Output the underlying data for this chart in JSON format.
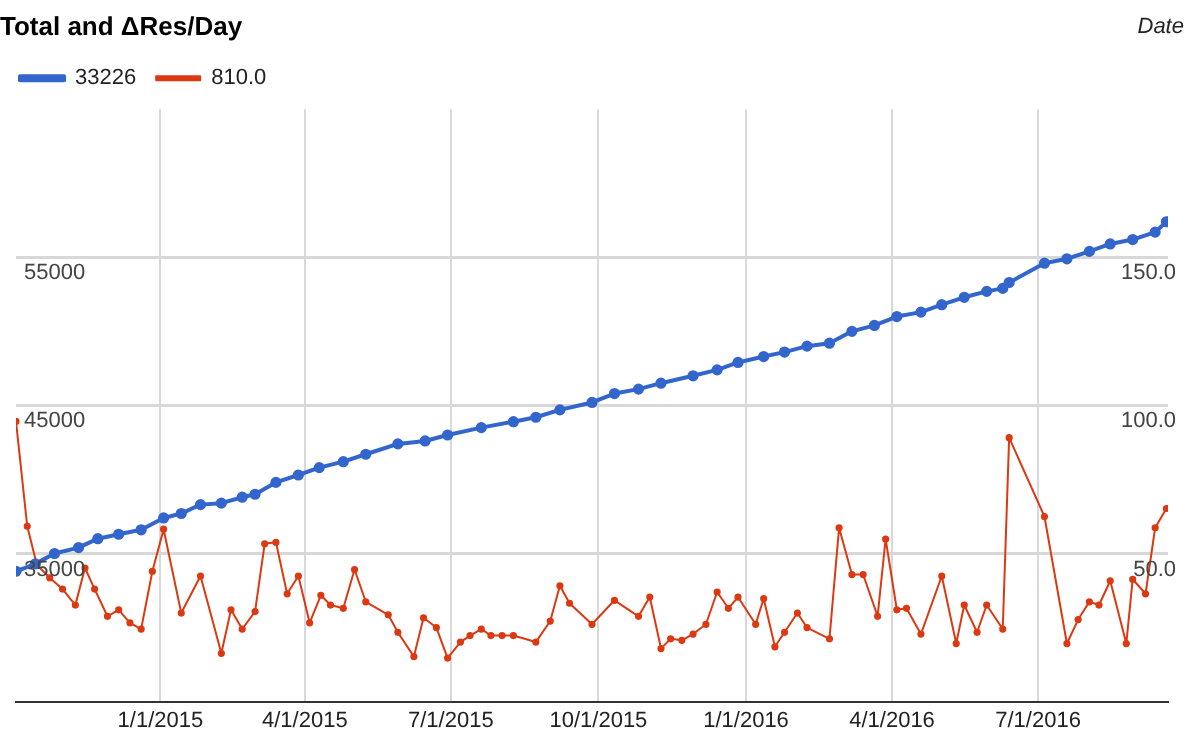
{
  "chart_data": {
    "type": "line",
    "title": "Total and ΔRes/Day",
    "xlabel": "Date",
    "xlim": [
      "2014-10-03",
      "2016-09-20"
    ],
    "xticks": [
      {
        "value": "2015-01-01",
        "label": "1/1/2015"
      },
      {
        "value": "2015-04-01",
        "label": "4/1/2015"
      },
      {
        "value": "2015-07-01",
        "label": "7/1/2015"
      },
      {
        "value": "2015-10-01",
        "label": "10/1/2015"
      },
      {
        "value": "2016-01-01",
        "label": "1/1/2016"
      },
      {
        "value": "2016-04-01",
        "label": "4/1/2016"
      },
      {
        "value": "2016-07-01",
        "label": "7/1/2016"
      }
    ],
    "ylim": [
      25000,
      65000
    ],
    "yticks": [
      35000,
      45000,
      55000
    ],
    "y2lim": [
      0,
      200
    ],
    "y2ticks": [
      {
        "value": 50,
        "label": "50.0"
      },
      {
        "value": 100,
        "label": "100.0"
      },
      {
        "value": 150,
        "label": "150.0"
      }
    ],
    "grid": true,
    "legend": "top left",
    "marker": "circle",
    "line_style": "solid",
    "series": [
      {
        "name": "33226",
        "color": "#3366cc",
        "axis": "y",
        "x": [
          "2014-10-03",
          "2014-10-15",
          "2014-10-27",
          "2014-11-11",
          "2014-11-23",
          "2014-12-06",
          "2014-12-20",
          "2015-01-03",
          "2015-01-14",
          "2015-01-26",
          "2015-02-08",
          "2015-02-21",
          "2015-03-01",
          "2015-03-14",
          "2015-03-28",
          "2015-04-10",
          "2015-04-25",
          "2015-05-09",
          "2015-05-29",
          "2015-06-15",
          "2015-06-29",
          "2015-07-20",
          "2015-08-09",
          "2015-08-23",
          "2015-09-07",
          "2015-09-27",
          "2015-10-11",
          "2015-10-26",
          "2015-11-09",
          "2015-11-29",
          "2015-12-14",
          "2015-12-27",
          "2016-01-12",
          "2016-01-25",
          "2016-02-08",
          "2016-02-22",
          "2016-03-07",
          "2016-03-21",
          "2016-04-04",
          "2016-04-19",
          "2016-05-02",
          "2016-05-16",
          "2016-05-30",
          "2016-06-09",
          "2016-06-13",
          "2016-07-05",
          "2016-07-19",
          "2016-08-02",
          "2016-08-15",
          "2016-08-29",
          "2016-09-12",
          "2016-09-19"
        ],
        "values": [
          33800,
          34300,
          35000,
          35400,
          36000,
          36300,
          36600,
          37400,
          37700,
          38300,
          38400,
          38800,
          39000,
          39800,
          40300,
          40800,
          41200,
          41700,
          42400,
          42600,
          43000,
          43500,
          43900,
          44200,
          44700,
          45200,
          45800,
          46100,
          46500,
          47000,
          47400,
          47900,
          48300,
          48600,
          49000,
          49200,
          50000,
          50400,
          51000,
          51300,
          51800,
          52300,
          52700,
          52900,
          53300,
          54600,
          54900,
          55400,
          55900,
          56200,
          56700,
          57400
        ]
      },
      {
        "name": "810.0",
        "color": "#dc3912",
        "axis": "y2",
        "x": [
          "2014-10-03",
          "2014-10-10",
          "2014-10-16",
          "2014-10-24",
          "2014-11-01",
          "2014-11-09",
          "2014-11-15",
          "2014-11-21",
          "2014-11-29",
          "2014-12-06",
          "2014-12-13",
          "2014-12-20",
          "2014-12-27",
          "2015-01-03",
          "2015-01-14",
          "2015-01-26",
          "2015-02-08",
          "2015-02-14",
          "2015-02-21",
          "2015-03-01",
          "2015-03-07",
          "2015-03-14",
          "2015-03-21",
          "2015-03-28",
          "2015-04-04",
          "2015-04-11",
          "2015-04-17",
          "2015-04-25",
          "2015-05-02",
          "2015-05-09",
          "2015-05-23",
          "2015-05-29",
          "2015-06-08",
          "2015-06-14",
          "2015-06-22",
          "2015-06-29",
          "2015-07-07",
          "2015-07-13",
          "2015-07-20",
          "2015-07-26",
          "2015-08-02",
          "2015-08-09",
          "2015-08-23",
          "2015-09-01",
          "2015-09-07",
          "2015-09-13",
          "2015-09-27",
          "2015-10-11",
          "2015-10-26",
          "2015-11-02",
          "2015-11-09",
          "2015-11-15",
          "2015-11-22",
          "2015-11-29",
          "2015-12-07",
          "2015-12-14",
          "2015-12-21",
          "2015-12-27",
          "2016-01-07",
          "2016-01-12",
          "2016-01-19",
          "2016-01-25",
          "2016-02-02",
          "2016-02-08",
          "2016-02-22",
          "2016-02-28",
          "2016-03-07",
          "2016-03-14",
          "2016-03-23",
          "2016-03-28",
          "2016-04-04",
          "2016-04-10",
          "2016-04-19",
          "2016-05-02",
          "2016-05-11",
          "2016-05-16",
          "2016-05-24",
          "2016-05-30",
          "2016-06-09",
          "2016-06-13",
          "2016-07-05",
          "2016-07-19",
          "2016-07-26",
          "2016-08-02",
          "2016-08-08",
          "2016-08-15",
          "2016-08-25",
          "2016-08-29",
          "2016-09-06",
          "2016-09-12",
          "2016-09-19"
        ],
        "values": [
          94.6,
          59.2,
          46.2,
          41.8,
          38.0,
          32.6,
          45.1,
          38.0,
          28.8,
          31.0,
          26.6,
          24.5,
          44.0,
          58.2,
          29.9,
          42.4,
          16.3,
          31.0,
          24.5,
          30.4,
          53.3,
          53.8,
          36.4,
          42.4,
          26.6,
          35.9,
          32.6,
          31.5,
          44.6,
          33.7,
          29.3,
          23.4,
          15.2,
          28.3,
          25.0,
          14.7,
          20.1,
          22.3,
          24.5,
          22.3,
          22.3,
          22.3,
          20.1,
          27.2,
          39.1,
          33.2,
          26.1,
          34.2,
          28.8,
          35.3,
          17.9,
          21.2,
          20.7,
          22.8,
          26.1,
          37.0,
          31.5,
          35.3,
          26.1,
          34.8,
          18.5,
          23.4,
          29.9,
          25.0,
          21.2,
          58.7,
          42.9,
          42.9,
          28.8,
          54.9,
          31.0,
          31.5,
          22.8,
          42.4,
          19.6,
          32.6,
          23.4,
          32.6,
          24.5,
          89.1,
          62.5,
          19.6,
          27.7,
          33.7,
          32.6,
          40.8,
          19.6,
          41.3,
          36.4,
          58.7,
          65.2
        ]
      }
    ]
  }
}
